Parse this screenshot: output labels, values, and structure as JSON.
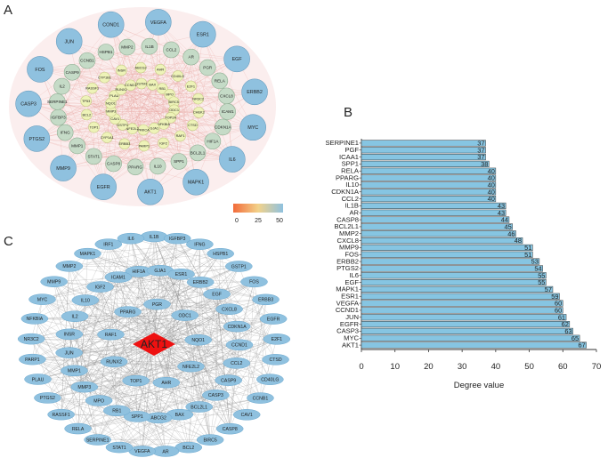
{
  "panels": {
    "a": "A",
    "b": "B",
    "c": "C"
  },
  "colors": {
    "bar_fill": "#86c5e2",
    "bar_stroke": "#3a3a3a",
    "node_blue": "#8fc1df",
    "node_sage": "#c5dbc7",
    "node_yellow": "#eef3b8",
    "edge_red": "#e8a19a",
    "edge_gray": "#8a8a8a",
    "hub_red": "#ee1111"
  },
  "network_a": {
    "legend": {
      "min": "0",
      "mid": "25",
      "max": "50",
      "gradient": [
        "#f26b3a",
        "#f2d28a",
        "#8fc1df"
      ]
    },
    "outer_ring": [
      "COND1",
      "VEGFA",
      "ESR1",
      "EGF",
      "ERBB2",
      "MYC",
      "IL6",
      "MAPK1",
      "AKT1",
      "EGFR",
      "MMP9",
      "PTGS2",
      "CASP3",
      "FOS",
      "JUN"
    ],
    "middle_ring": [
      "MMP2",
      "IL1B",
      "CCL2",
      "AR",
      "PGR",
      "RELA",
      "CXCL8",
      "ICAM1",
      "CDKN1A",
      "HIF1A",
      "BCL2L1",
      "SPP1",
      "IL10",
      "PPARG",
      "CASP8",
      "STAT1",
      "MMP1",
      "IFNG",
      "IGFBP3",
      "SERPINE1",
      "IL2",
      "CASP9",
      "CCNB1",
      "HSPB1"
    ],
    "inner_nodes": [
      "ABCG2",
      "AHR",
      "CD40LG",
      "E2F1",
      "NR3C2",
      "CHEK2",
      "CTSD",
      "RAF1",
      "IGF2",
      "PARP1",
      "ERBB3",
      "CYP1A1",
      "TOP1",
      "BCL2",
      "TP53",
      "RASSF1",
      "CYP1B1",
      "INSR",
      "GSTM1",
      "BAX",
      "RB1",
      "MPO",
      "BIRC5",
      "ODC1",
      "TOP2A",
      "NFKBIA",
      "GJA1",
      "PRKCA",
      "NFE2L2",
      "GSTP1",
      "CAV1",
      "MMP3",
      "NQO1",
      "PLAU",
      "RUNX2",
      "CCND1"
    ]
  },
  "network_c": {
    "hub": "AKT1",
    "outer_ring": [
      "IL1B",
      "IGFBP3",
      "IFNG",
      "HSPB1",
      "GSTP1",
      "FOS",
      "ERBB3",
      "EGFR",
      "E2F1",
      "CTSD",
      "CD40LG",
      "CCNB1",
      "CAV1",
      "CASP8",
      "BIRC5",
      "BCL2",
      "AR",
      "VEGFA",
      "STAT1",
      "SERPINE1",
      "RELA",
      "RASSF1",
      "PTGS2",
      "PLAU",
      "PARP1",
      "NR3C2",
      "NFKBIA",
      "MYC",
      "MMP9",
      "MMP2",
      "MAPK1",
      "IRF1",
      "IL6"
    ],
    "middle_ring": [
      "HIF1A",
      "GJA1",
      "ESR1",
      "ERBB2",
      "EGF",
      "CXCL8",
      "CDKN1A",
      "CCND1",
      "CCL2",
      "CASP9",
      "CASP3",
      "BCL2L1",
      "BAX",
      "ABCG2",
      "SPP1",
      "RB1",
      "MPO",
      "MMP3",
      "MMP1",
      "JUN",
      "INSR",
      "IL2",
      "IL10",
      "IGF2",
      "ICAM1"
    ],
    "inner_ring": [
      "PPARG",
      "PGR",
      "ODC1",
      "NQO1",
      "NFE2L2",
      "AHR",
      "TOP1",
      "RUNX2",
      "RAF1"
    ]
  },
  "chart_data": {
    "type": "bar",
    "orientation": "horizontal",
    "categories": [
      "SERPINE1",
      "PGF",
      "ICAA1",
      "SPP1",
      "RELA",
      "PPARG",
      "IL10",
      "CDKN1A",
      "CCL2",
      "IL1B",
      "AR",
      "CASP8",
      "BCL2L1",
      "MMP2",
      "CXCL8",
      "MMP9",
      "FOS",
      "ERBB2",
      "PTGS2",
      "IL6",
      "EGF",
      "MAPK1",
      "ESR1",
      "VEGFA",
      "CCND1",
      "JUN",
      "EGFR",
      "CASP3",
      "MYC",
      "AKT1"
    ],
    "values": [
      37,
      37,
      37,
      38,
      40,
      40,
      40,
      40,
      40,
      43,
      43,
      44,
      45,
      46,
      48,
      51,
      51,
      53,
      54,
      55,
      55,
      57,
      59,
      60,
      60,
      61,
      62,
      63,
      65,
      67
    ],
    "xlabel": "Degree value",
    "xlim": [
      0,
      70
    ],
    "xticks": [
      "0",
      "10",
      "20",
      "30",
      "40",
      "50",
      "60",
      "70"
    ],
    "grid": false
  }
}
